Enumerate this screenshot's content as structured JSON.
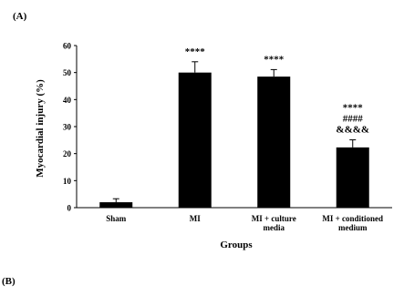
{
  "panels": {
    "a": "(A)",
    "b": "(B)"
  },
  "chart_data": {
    "type": "bar",
    "xlabel": "Groups",
    "ylabel": "Myocardial injury (%)",
    "ylim": [
      0,
      60
    ],
    "yticks": [
      "0",
      "10",
      "20",
      "30",
      "40",
      "50",
      "60"
    ],
    "grid": false,
    "legend": "none",
    "categories": [
      {
        "lines": [
          "Sham"
        ]
      },
      {
        "lines": [
          "MI"
        ]
      },
      {
        "lines": [
          "MI + culture",
          "media"
        ]
      },
      {
        "lines": [
          "MI + conditioned",
          "medium"
        ]
      }
    ],
    "values": [
      2,
      50,
      48.5,
      22.3
    ],
    "errors": [
      1.3,
      4.0,
      2.6,
      2.8
    ],
    "annotations": [
      [],
      [
        "****"
      ],
      [
        "****"
      ],
      [
        "****",
        "####",
        "&&&&"
      ]
    ],
    "bar_color": "#000000"
  }
}
